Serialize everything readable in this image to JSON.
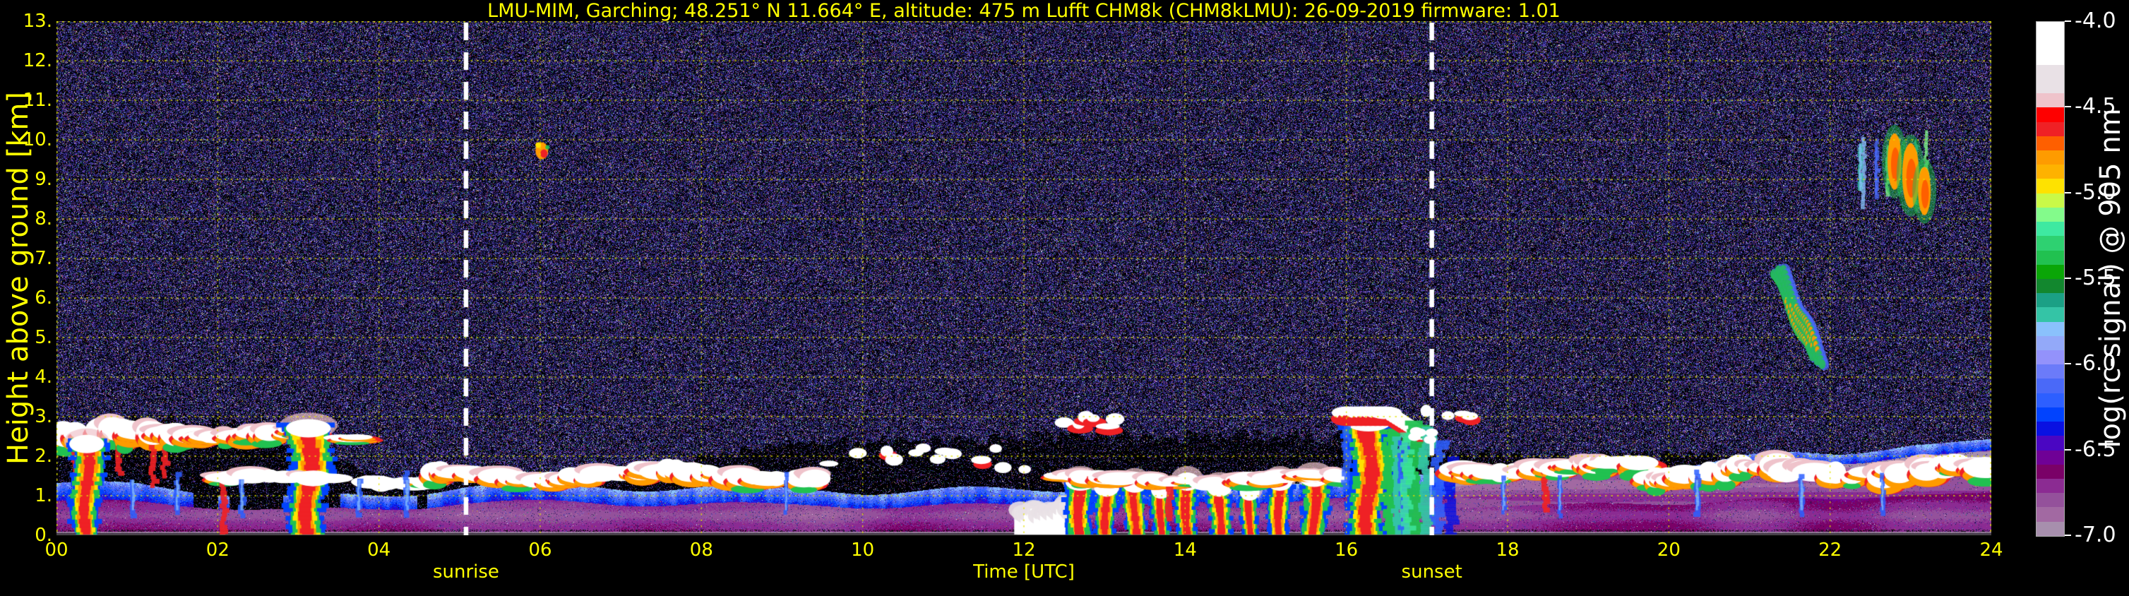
{
  "colors": {
    "background": "#000000",
    "axis_text": "#ffff00",
    "colorbar_text": "#ffffff",
    "grid": "#e3e300",
    "annotation_line": "#ffffff"
  },
  "chart_data": {
    "type": "heatmap",
    "title": "LMU-MIM, Garching; 48.251° N 11.664° E, altitude: 475 m    Lufft CHM8k (CHM8kLMU): 26-09-2019    firmware: 1.01",
    "xlabel": "Time [UTC]",
    "ylabel": "Height above ground [km]",
    "colorbar_label": "log(rc-signal) @ 905 nm",
    "xlim": [
      0,
      24
    ],
    "ylim": [
      0,
      13
    ],
    "colorbar_range": [
      -4.0,
      -7.0
    ],
    "grid": "dotted yellow, x every 2 h, y every 1 km",
    "legend_position": "colorbar right",
    "x_ticks": [
      {
        "label": "00",
        "hour": 0
      },
      {
        "label": "02",
        "hour": 2
      },
      {
        "label": "04",
        "hour": 4
      },
      {
        "label": "06",
        "hour": 6
      },
      {
        "label": "08",
        "hour": 8
      },
      {
        "label": "10",
        "hour": 10
      },
      {
        "label": "12",
        "hour": 12
      },
      {
        "label": "14",
        "hour": 14
      },
      {
        "label": "16",
        "hour": 16
      },
      {
        "label": "18",
        "hour": 18
      },
      {
        "label": "20",
        "hour": 20
      },
      {
        "label": "22",
        "hour": 22
      },
      {
        "label": "24",
        "hour": 24
      }
    ],
    "y_ticks": [
      {
        "label": "0.",
        "km": 0
      },
      {
        "label": "1.",
        "km": 1
      },
      {
        "label": "2.",
        "km": 2
      },
      {
        "label": "3.",
        "km": 3
      },
      {
        "label": "4.",
        "km": 4
      },
      {
        "label": "5.",
        "km": 5
      },
      {
        "label": "6.",
        "km": 6
      },
      {
        "label": "7.",
        "km": 7
      },
      {
        "label": "8.",
        "km": 8
      },
      {
        "label": "9.",
        "km": 9
      },
      {
        "label": "10.",
        "km": 10
      },
      {
        "label": "11.",
        "km": 11
      },
      {
        "label": "12.",
        "km": 12
      },
      {
        "label": "13.",
        "km": 13
      }
    ],
    "colorbar_ticks": [
      {
        "label": "-4.0",
        "value": -4.0
      },
      {
        "label": "-4.5",
        "value": -4.5
      },
      {
        "label": "-5.0",
        "value": -5.0
      },
      {
        "label": "-5.5",
        "value": -5.5
      },
      {
        "label": "-6.0",
        "value": -6.0
      },
      {
        "label": "-6.5",
        "value": -6.5
      },
      {
        "label": "-7.0",
        "value": -7.0
      }
    ],
    "colorbar_colors": [
      "#ffffff",
      "#ffffff",
      "#ffffff",
      "#e9e1e6",
      "#e9e1e6",
      "#efc3cb",
      "#fe0000",
      "#ef2125",
      "#fe5f00",
      "#fe9b00",
      "#feb200",
      "#fee200",
      "#c9f948",
      "#83fb8b",
      "#3ee9a1",
      "#2ed171",
      "#21c150",
      "#0aa607",
      "#12872e",
      "#1ba085",
      "#34c4a6",
      "#8ac1fc",
      "#93a9f9",
      "#9392fb",
      "#6b7bf9",
      "#4a69f8",
      "#2d5fff",
      "#0143fe",
      "#0911e2",
      "#4a06c2",
      "#6f0196",
      "#7a0167",
      "#8b2b92",
      "#94519b",
      "#a269a2",
      "#a78fad"
    ],
    "annotations": [
      {
        "label": "sunrise",
        "hour": 5.08
      },
      {
        "label": "sunset",
        "hour": 17.06
      }
    ],
    "noise_palette": [
      {
        "color": "#14144a",
        "weight": 26
      },
      {
        "color": "#2a2a8c",
        "weight": 20
      },
      {
        "color": "#4040c0",
        "weight": 13
      },
      {
        "color": "#5e2d8e",
        "weight": 10
      },
      {
        "color": "#7a5ad0",
        "weight": 8
      },
      {
        "color": "#8080e8",
        "weight": 6
      },
      {
        "color": "#a040a0",
        "weight": 4
      },
      {
        "color": "#30a060",
        "weight": 4
      },
      {
        "color": "#b04040",
        "weight": 3
      },
      {
        "color": "#e0e0e0",
        "weight": 3
      },
      {
        "color": "#c8b040",
        "weight": 2
      },
      {
        "color": "#208080",
        "weight": 1
      }
    ],
    "boundary_layer": {
      "purple_top_km": [
        [
          0,
          1.35
        ],
        [
          1,
          1.3
        ],
        [
          2,
          1.1
        ],
        [
          3,
          0.95
        ],
        [
          4,
          1.05
        ],
        [
          5,
          1.2
        ],
        [
          6,
          1.25
        ],
        [
          8,
          1.2
        ],
        [
          10,
          1.1
        ],
        [
          12,
          1.2
        ],
        [
          14,
          1.25
        ],
        [
          16,
          1.35
        ],
        [
          17,
          1.5
        ],
        [
          19,
          1.8
        ],
        [
          21,
          1.95
        ],
        [
          23,
          2.25
        ],
        [
          24,
          2.3
        ]
      ],
      "dense_noise_above_km": [
        [
          0,
          2.9
        ],
        [
          2,
          2.9
        ],
        [
          4,
          1.5
        ],
        [
          7,
          1.6
        ],
        [
          9,
          2.3
        ],
        [
          12,
          2.5
        ],
        [
          16,
          2.5
        ],
        [
          17,
          2.1
        ],
        [
          19,
          2.0
        ],
        [
          24,
          2.05
        ]
      ]
    },
    "features": [
      {
        "kind": "deck",
        "t0": 0.0,
        "t1": 1.75,
        "h0": 2.2,
        "h1": 2.85,
        "red": 0.95,
        "gap": 0.08
      },
      {
        "kind": "precip",
        "t0": 0.2,
        "t1": 0.55,
        "h0": 0.05,
        "h1": 2.45
      },
      {
        "kind": "deck",
        "t0": 1.75,
        "t1": 3.1,
        "h0": 2.3,
        "h1": 2.75,
        "red": 0.75,
        "gap": 0.18
      },
      {
        "kind": "precip",
        "t0": 2.9,
        "t1": 3.35,
        "h0": 0.05,
        "h1": 2.85
      },
      {
        "kind": "deck",
        "t0": 2.1,
        "t1": 4.7,
        "h0": 1.2,
        "h1": 1.6,
        "red": 0.25,
        "gap": 0.3
      },
      {
        "kind": "deck",
        "t0": 3.5,
        "t1": 4.15,
        "h0": 2.4,
        "h1": 2.65,
        "red": 0.4,
        "gap": 0.35
      },
      {
        "kind": "deck",
        "t0": 4.7,
        "t1": 9.4,
        "h0": 1.3,
        "h1": 1.8,
        "red": 0.5,
        "gap": 0.22
      },
      {
        "kind": "scatter",
        "t0": 9.4,
        "t1": 12.3,
        "h0": 1.5,
        "h1": 2.35
      },
      {
        "kind": "ground_white",
        "t0": 11.95,
        "t1": 12.65,
        "h0": 0.0,
        "h1": 0.8
      },
      {
        "kind": "precip",
        "t0": 12.55,
        "t1": 12.85,
        "h0": 0.05,
        "h1": 1.5
      },
      {
        "kind": "precip",
        "t0": 12.9,
        "t1": 13.15,
        "h0": 0.05,
        "h1": 1.35
      },
      {
        "kind": "precip",
        "t0": 13.25,
        "t1": 13.5,
        "h0": 0.05,
        "h1": 1.45
      },
      {
        "kind": "precip",
        "t0": 13.6,
        "t1": 13.8,
        "h0": 0.05,
        "h1": 1.3
      },
      {
        "kind": "precip",
        "t0": 13.9,
        "t1": 14.15,
        "h0": 0.05,
        "h1": 1.5
      },
      {
        "kind": "precip",
        "t0": 14.3,
        "t1": 14.55,
        "h0": 0.05,
        "h1": 1.35
      },
      {
        "kind": "precip",
        "t0": 14.7,
        "t1": 14.9,
        "h0": 0.05,
        "h1": 1.25
      },
      {
        "kind": "precip",
        "t0": 15.05,
        "t1": 15.3,
        "h0": 0.05,
        "h1": 1.5
      },
      {
        "kind": "precip",
        "t0": 15.45,
        "t1": 15.75,
        "h0": 0.05,
        "h1": 1.6
      },
      {
        "kind": "deck",
        "t0": 12.5,
        "t1": 16.0,
        "h0": 1.25,
        "h1": 1.6,
        "red": 0.55,
        "gap": 0.3
      },
      {
        "kind": "tall_column",
        "t0": 15.95,
        "t1": 16.7,
        "h0": 0.05,
        "h1": 3.3
      },
      {
        "kind": "green_column",
        "t0": 16.7,
        "t1": 17.6,
        "h0": 0.05,
        "h1": 2.9
      },
      {
        "kind": "scatter",
        "t0": 12.5,
        "t1": 13.2,
        "h0": 2.75,
        "h1": 3.05
      },
      {
        "kind": "scatter",
        "t0": 16.9,
        "t1": 17.6,
        "h0": 2.9,
        "h1": 3.15
      },
      {
        "kind": "deck",
        "t0": 17.4,
        "t1": 19.7,
        "h0": 1.45,
        "h1": 1.95,
        "red": 0.6,
        "gap": 0.2
      },
      {
        "kind": "deck",
        "t0": 19.7,
        "t1": 20.75,
        "h0": 1.25,
        "h1": 1.9,
        "red": 0.8,
        "gap": 0.12
      },
      {
        "kind": "deck",
        "t0": 20.75,
        "t1": 23.95,
        "h0": 1.35,
        "h1": 1.95,
        "red": 0.45,
        "gap": 0.3
      },
      {
        "kind": "cirrus",
        "t0": 21.3,
        "t1": 21.95,
        "h0": 4.35,
        "h1": 6.6
      },
      {
        "kind": "cirrus_streaks",
        "t0": 22.15,
        "t1": 23.35,
        "h0": 8.3,
        "h1": 10.35
      },
      {
        "kind": "spot",
        "t0": 5.92,
        "t1": 6.12,
        "h0": 9.5,
        "h1": 9.95
      },
      {
        "kind": "virga",
        "times": [
          0.95,
          1.5,
          2.3,
          3.75,
          4.35,
          9.05,
          17.05,
          17.95,
          18.65,
          20.35,
          21.65,
          22.65
        ],
        "h0": 0.55,
        "h1": 1.4
      }
    ]
  }
}
